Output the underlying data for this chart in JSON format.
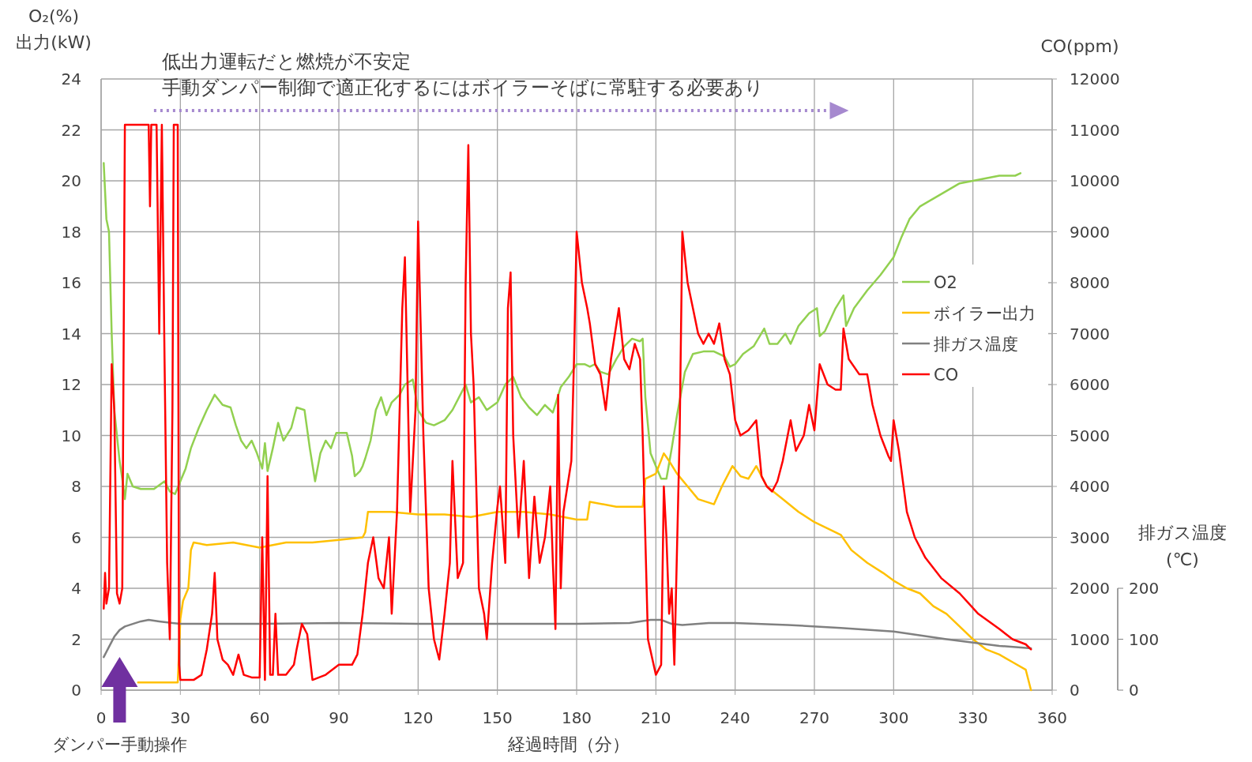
{
  "chart_data": {
    "type": "line",
    "xlabel": "経過時間（分）",
    "ylabel": "O₂(%)\n出力(kW)",
    "y2label": "CO(ppm)",
    "y3label": "排ガス温度\n(℃)",
    "annotations": [
      "低出力運転だと燃焼が不安定",
      "手動ダンパー制御で適正化するにはボイラーそばに常駐する必要あり",
      "ダンパー手動操作"
    ],
    "xlim": [
      0,
      360
    ],
    "xticks": [
      0,
      30,
      60,
      90,
      120,
      150,
      180,
      210,
      240,
      270,
      300,
      330,
      360
    ],
    "ylim": [
      0,
      24
    ],
    "yticks": [
      0,
      2,
      4,
      6,
      8,
      10,
      12,
      14,
      16,
      18,
      20,
      22,
      24
    ],
    "y2lim": [
      0,
      12000
    ],
    "y2ticks": [
      0,
      1000,
      2000,
      3000,
      4000,
      5000,
      6000,
      7000,
      8000,
      9000,
      10000,
      11000,
      12000
    ],
    "y3lim": [
      0,
      200
    ],
    "y3ticks": [
      0,
      100,
      200
    ],
    "grid": true,
    "legend": "right",
    "marker": "none",
    "line_style": "solid",
    "series": [
      {
        "name": "O2",
        "color": "#92d050",
        "x": [
          1,
          2,
          3,
          4,
          5,
          7,
          8,
          9,
          10,
          12,
          15,
          20,
          24,
          26,
          28,
          30,
          32,
          34,
          37,
          40,
          43,
          46,
          49,
          51,
          53,
          55,
          57,
          59,
          61,
          62,
          63,
          65,
          67,
          69,
          72,
          74,
          77,
          79,
          81,
          83,
          85,
          87,
          89,
          93,
          95,
          96,
          98,
          99,
          100,
          102,
          104,
          106,
          108,
          110,
          113,
          115,
          118,
          120,
          123,
          126,
          130,
          133,
          136,
          138,
          140,
          143,
          146,
          150,
          153,
          156,
          159,
          162,
          165,
          168,
          171,
          174,
          177,
          180,
          183,
          185,
          187,
          189,
          192,
          195,
          198,
          201,
          204,
          205,
          206,
          208,
          210,
          212,
          214,
          216,
          218,
          221,
          224,
          228,
          232,
          236,
          238,
          240,
          243,
          247,
          251,
          253,
          256,
          259,
          261,
          264,
          268,
          271,
          272,
          274,
          278,
          281,
          282,
          285,
          290,
          295,
          300,
          303,
          306,
          310,
          315,
          320,
          325,
          330,
          335,
          340,
          346,
          348
        ],
        "values": [
          20.7,
          18.5,
          18.0,
          14,
          11,
          9,
          8.3,
          7.5,
          8.5,
          8.0,
          7.9,
          7.9,
          8.2,
          7.8,
          7.7,
          8.2,
          8.7,
          9.5,
          10.3,
          11.0,
          11.6,
          11.2,
          11.1,
          10.4,
          9.8,
          9.5,
          9.8,
          9.3,
          8.7,
          9.7,
          8.6,
          9.5,
          10.5,
          9.8,
          10.3,
          11.1,
          11.0,
          9.5,
          8.2,
          9.3,
          9.8,
          9.5,
          10.1,
          10.1,
          9.2,
          8.4,
          8.6,
          8.8,
          9.1,
          9.8,
          11.0,
          11.5,
          10.8,
          11.3,
          11.6,
          12.0,
          12.2,
          11.0,
          10.5,
          10.4,
          10.6,
          11.0,
          11.6,
          12.0,
          11.3,
          11.5,
          11.0,
          11.3,
          12.0,
          12.3,
          11.5,
          11.1,
          10.8,
          11.2,
          10.9,
          11.9,
          12.3,
          12.8,
          12.8,
          12.7,
          12.8,
          12.5,
          12.4,
          13.0,
          13.5,
          13.8,
          13.7,
          13.8,
          11.5,
          9.3,
          8.8,
          8.3,
          8.3,
          9.5,
          10.8,
          12.5,
          13.2,
          13.3,
          13.3,
          13.1,
          12.7,
          12.8,
          13.2,
          13.5,
          14.2,
          13.6,
          13.6,
          14.0,
          13.6,
          14.3,
          14.8,
          15.0,
          13.9,
          14.1,
          15.0,
          15.5,
          14.3,
          15.0,
          15.7,
          16.3,
          17.0,
          17.8,
          18.5,
          19.0,
          19.3,
          19.6,
          19.9,
          20.0,
          20.1,
          20.2,
          20.2,
          20.3
        ]
      },
      {
        "name": "ボイラー出力",
        "color": "#ffc000",
        "x": [
          14,
          29,
          29.5,
          30,
          31,
          33,
          34,
          35,
          40,
          50,
          60,
          70,
          80,
          90,
          99,
          100,
          101,
          110,
          120,
          130,
          140,
          150,
          160,
          170,
          180,
          184,
          185,
          195,
          205,
          206,
          210,
          213,
          215,
          218,
          222,
          226,
          232,
          235,
          239,
          242,
          245,
          248,
          252,
          258,
          264,
          270,
          276,
          280,
          284,
          290,
          296,
          300,
          305,
          310,
          315,
          320,
          325,
          330,
          335,
          340,
          345,
          350,
          352
        ],
        "values": [
          0.3,
          0.3,
          1.5,
          2.8,
          3.5,
          4.0,
          5.5,
          5.8,
          5.7,
          5.8,
          5.6,
          5.8,
          5.8,
          5.9,
          6.0,
          6.2,
          7.0,
          7.0,
          6.9,
          6.9,
          6.8,
          7.0,
          7.0,
          6.9,
          6.7,
          6.7,
          7.4,
          7.2,
          7.2,
          8.3,
          8.5,
          9.3,
          9.0,
          8.5,
          8.0,
          7.5,
          7.3,
          8.0,
          8.8,
          8.4,
          8.3,
          8.8,
          8.0,
          7.5,
          7.0,
          6.6,
          6.3,
          6.1,
          5.5,
          5.0,
          4.6,
          4.3,
          4.0,
          3.8,
          3.3,
          3.0,
          2.5,
          2.0,
          1.6,
          1.4,
          1.1,
          0.8,
          0.0
        ]
      },
      {
        "name": "排ガス温度",
        "color": "#808080",
        "axis": "y3",
        "x": [
          1,
          3,
          5,
          7,
          9,
          12,
          15,
          18,
          22,
          27,
          30,
          60,
          90,
          120,
          150,
          180,
          200,
          208,
          212,
          216,
          220,
          230,
          240,
          260,
          280,
          300,
          320,
          340,
          352
        ],
        "values": [
          65,
          85,
          105,
          118,
          125,
          130,
          135,
          138,
          135,
          132,
          130,
          130,
          132,
          130,
          130,
          130,
          132,
          138,
          138,
          130,
          128,
          132,
          132,
          128,
          122,
          115,
          100,
          87,
          82
        ]
      },
      {
        "name": "CO",
        "color": "#ff0000",
        "axis": "y2",
        "x": [
          1,
          1.5,
          2,
          3,
          4,
          5,
          6,
          7,
          8,
          9,
          18,
          18.5,
          19,
          21,
          22,
          23,
          24,
          25,
          26,
          27,
          27.5,
          29,
          29.5,
          30,
          35,
          38,
          40,
          42,
          43,
          44,
          46,
          48,
          50,
          52,
          54,
          57,
          60,
          61,
          62,
          63,
          64,
          65,
          66,
          67,
          70,
          73,
          74,
          76,
          78,
          80,
          85,
          90,
          95,
          97,
          99,
          101,
          103,
          105,
          107,
          109,
          110,
          112,
          114,
          115,
          116,
          117,
          119,
          120,
          122,
          124,
          126,
          128,
          130,
          132,
          133,
          135,
          137,
          138,
          139,
          140,
          141,
          143,
          145,
          146,
          148,
          150,
          151,
          153,
          154,
          155,
          156,
          158,
          160,
          162,
          164,
          166,
          168,
          170,
          171,
          172,
          173,
          174,
          175,
          178,
          179,
          180,
          182,
          184,
          185,
          187,
          189,
          191,
          193,
          196,
          198,
          200,
          202,
          204,
          205,
          207,
          210,
          212,
          213,
          214,
          215,
          216,
          217,
          219,
          220,
          222,
          224,
          226,
          228,
          230,
          232,
          234,
          236,
          238,
          240,
          242,
          245,
          248,
          250,
          252,
          254,
          256,
          258,
          261,
          263,
          266,
          268,
          270,
          272,
          275,
          278,
          280,
          281,
          283,
          287,
          290,
          292,
          295,
          298,
          299,
          300,
          302,
          305,
          308,
          312,
          318,
          325,
          332,
          340,
          345,
          350,
          352
        ],
        "values": [
          1600,
          2300,
          1700,
          2000,
          6400,
          5500,
          1900,
          1700,
          2000,
          11100,
          11100,
          9500,
          11100,
          11100,
          7000,
          11100,
          6500,
          2500,
          1000,
          5500,
          11100,
          11100,
          500,
          200,
          200,
          300,
          800,
          1500,
          2300,
          1000,
          600,
          500,
          300,
          700,
          300,
          250,
          250,
          3000,
          200,
          4200,
          300,
          300,
          1500,
          300,
          300,
          500,
          800,
          1300,
          1100,
          200,
          300,
          500,
          500,
          700,
          1500,
          2500,
          3000,
          2200,
          2000,
          3000,
          1500,
          3500,
          7500,
          8500,
          6000,
          3500,
          5500,
          9200,
          5000,
          2000,
          1000,
          600,
          1500,
          2500,
          4500,
          2200,
          2500,
          8000,
          10700,
          7000,
          6000,
          2000,
          1500,
          1000,
          2500,
          3600,
          4000,
          2500,
          7500,
          8200,
          5000,
          3000,
          4500,
          2200,
          3800,
          2500,
          3000,
          4000,
          2500,
          1200,
          5800,
          2000,
          3500,
          4500,
          6500,
          9000,
          8000,
          7500,
          7200,
          6400,
          6200,
          5500,
          6500,
          7500,
          6500,
          6300,
          6800,
          6500,
          5000,
          1000,
          300,
          500,
          4000,
          3000,
          1500,
          2000,
          500,
          5000,
          9000,
          8000,
          7500,
          7000,
          6800,
          7000,
          6800,
          7200,
          6500,
          6200,
          5300,
          5000,
          5100,
          5300,
          4200,
          4000,
          3900,
          4100,
          4500,
          5300,
          4700,
          5000,
          5600,
          5100,
          6400,
          6000,
          5900,
          5900,
          7100,
          6500,
          6200,
          6200,
          5600,
          5000,
          4600,
          4500,
          5300,
          4700,
          3500,
          3000,
          2600,
          2200,
          1900,
          1500,
          1200,
          1000,
          900,
          800
        ]
      }
    ]
  }
}
